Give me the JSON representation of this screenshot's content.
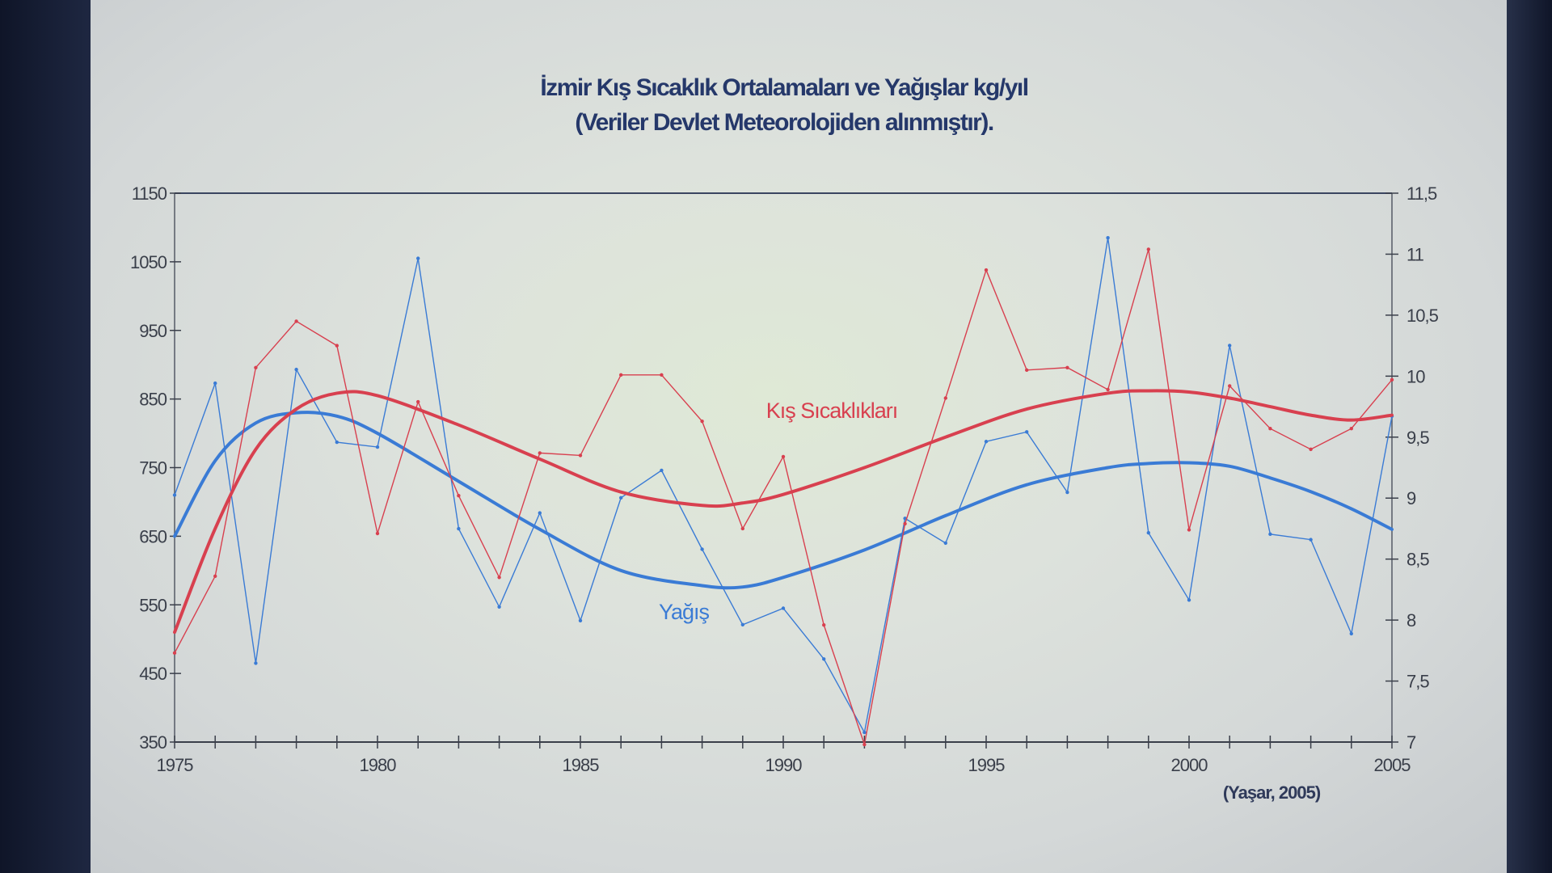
{
  "chart_data": {
    "type": "line",
    "title": "İzmir Kış Sıcaklık Ortalamaları ve Yağışlar kg/yıl",
    "subtitle": "(Veriler Devlet Meteorolojiden alınmıştır).",
    "source": "(Yaşar, 2005)",
    "x": [
      1975,
      1976,
      1977,
      1978,
      1979,
      1980,
      1981,
      1982,
      1983,
      1984,
      1985,
      1986,
      1987,
      1988,
      1989,
      1990,
      1991,
      1992,
      1993,
      1994,
      1995,
      1996,
      1997,
      1998,
      1999,
      2000,
      2001,
      2002,
      2003,
      2004,
      2005
    ],
    "xlim": [
      1975,
      2005
    ],
    "x_ticks": [
      "1975",
      "1980",
      "1985",
      "1990",
      "1995",
      "2000",
      "2005"
    ],
    "y_left": {
      "ylim": [
        350,
        1150
      ],
      "ticks": [
        "350",
        "450",
        "550",
        "650",
        "750",
        "850",
        "950",
        "1050",
        "1150"
      ]
    },
    "y_right": {
      "ylim": [
        7,
        11.5
      ],
      "ticks": [
        "7",
        "7,5",
        "8",
        "8,5",
        "9",
        "9,5",
        "10",
        "10,5",
        "11",
        "11,5"
      ]
    },
    "grid": false,
    "series": [
      {
        "name": "Yağış",
        "axis": "left",
        "color": "#3a7bd5",
        "values": [
          710,
          873,
          465,
          893,
          787,
          780,
          1055,
          661,
          547,
          684,
          527,
          706,
          746,
          631,
          521,
          545,
          471,
          364,
          676,
          640,
          788,
          802,
          714,
          1085,
          655,
          557,
          928,
          653,
          645,
          508,
          825
        ],
        "trend_x": [
          1975,
          1976,
          1977,
          1978,
          1979,
          1980,
          1982,
          1984,
          1986,
          1988,
          1989,
          1990,
          1992,
          1994,
          1996,
          1998,
          1999,
          2000,
          2001,
          2002,
          2003,
          2004,
          2005
        ],
        "trend": [
          650,
          760,
          815,
          830,
          825,
          800,
          730,
          660,
          600,
          578,
          576,
          590,
          630,
          680,
          725,
          750,
          756,
          757,
          752,
          735,
          715,
          690,
          660
        ]
      },
      {
        "name": "Kış Sıcaklıkları",
        "axis": "right",
        "color": "#d8404f",
        "values": [
          7.73,
          8.36,
          10.07,
          10.45,
          10.25,
          8.71,
          9.79,
          9.02,
          8.35,
          9.37,
          9.35,
          10.01,
          10.01,
          9.63,
          8.75,
          9.34,
          7.96,
          6.98,
          8.79,
          9.82,
          10.87,
          10.05,
          10.07,
          9.89,
          11.04,
          8.74,
          9.92,
          9.57,
          9.4,
          9.57,
          9.97
        ],
        "trend_x": [
          1975,
          1976,
          1977,
          1978,
          1979,
          1980,
          1982,
          1984,
          1986,
          1988,
          1989,
          1990,
          1992,
          1994,
          1996,
          1998,
          1999,
          2000,
          2001,
          2002,
          2003,
          2004,
          2005
        ],
        "trend": [
          7.9,
          8.75,
          9.4,
          9.73,
          9.86,
          9.84,
          9.6,
          9.32,
          9.05,
          8.94,
          8.96,
          9.03,
          9.25,
          9.5,
          9.73,
          9.86,
          9.88,
          9.87,
          9.82,
          9.75,
          9.68,
          9.64,
          9.68
        ]
      }
    ],
    "annotations": [
      "Kış Sıcaklıkları",
      "Yağış"
    ]
  }
}
